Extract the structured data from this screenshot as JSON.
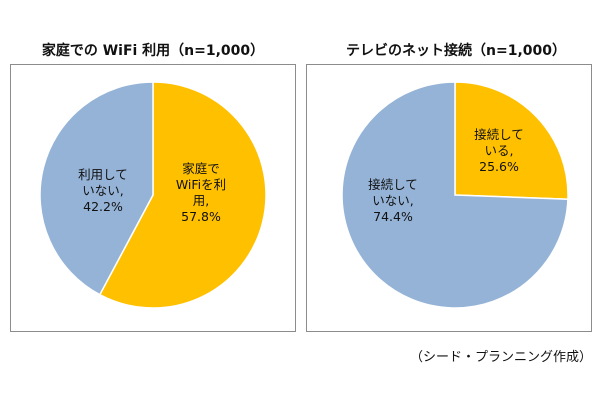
{
  "chart_data": [
    {
      "type": "pie",
      "title": "家庭での WiFi 利用（n=1,000）",
      "slices": [
        {
          "label": "家庭で\nWiFiを利\n用,\n57.8%",
          "value": 57.8,
          "color": "#FFC000"
        },
        {
          "label": "利用して\nいない,\n42.2%",
          "value": 42.2,
          "color": "#95B3D7"
        }
      ]
    },
    {
      "type": "pie",
      "title": "テレビのネット接続（n=1,000）",
      "slices": [
        {
          "label": "接続して\nいる,\n25.6%",
          "value": 25.6,
          "color": "#FFC000"
        },
        {
          "label": "接続して\nいない,\n74.4%",
          "value": 74.4,
          "color": "#95B3D7"
        }
      ]
    }
  ],
  "caption": "（シード・プランニング作成）"
}
